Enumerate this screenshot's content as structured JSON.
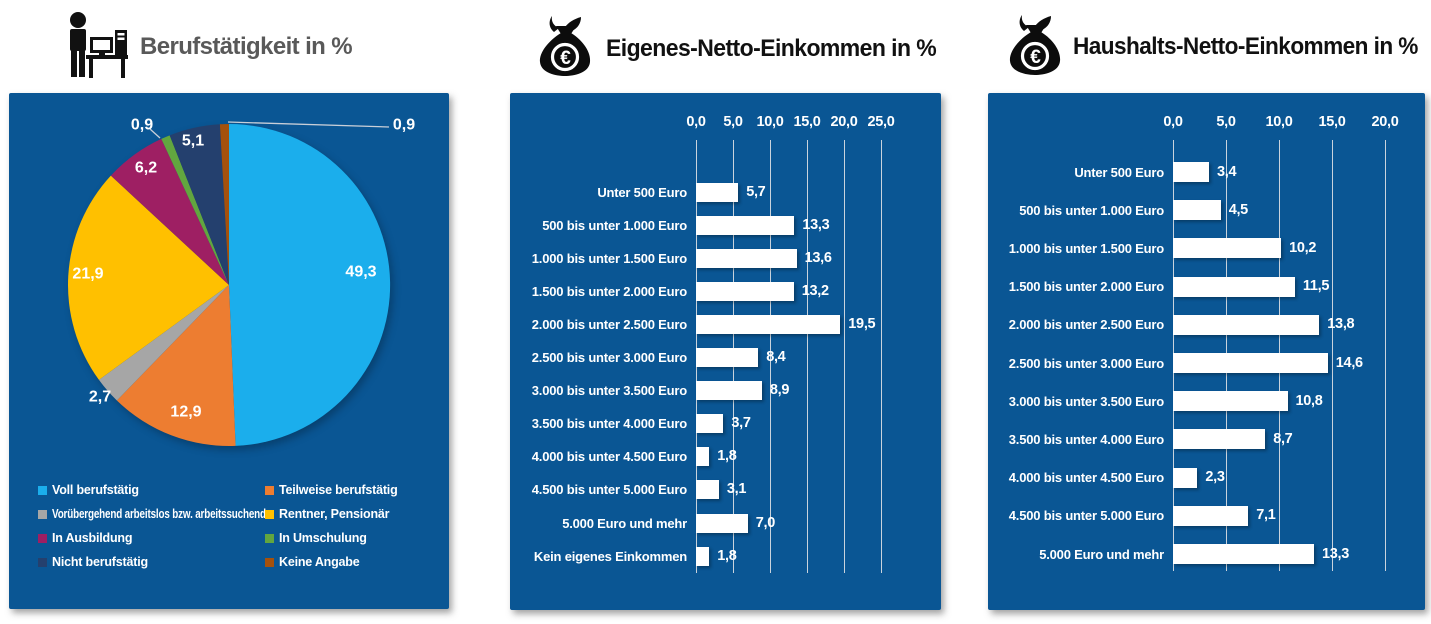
{
  "colors": {
    "panel_background": "#0A5694",
    "bar_fill": "#FFFFFF",
    "gridline": "#C9D3DD",
    "leader_line": "#C9CFD8",
    "title_employment": "#595959",
    "title_income": "#111111",
    "text_on_panel": "#FFFFFF"
  },
  "icons": {
    "employment": "person-at-desk-icon",
    "own_income": "money-bag-euro-icon",
    "household_income": "money-bag-euro-icon"
  },
  "chart_data": [
    {
      "type": "pie",
      "title": "Berufstätigkeit in %",
      "unit": "%",
      "start_angle_deg": 0,
      "direction": "clockwise",
      "labels": [
        "Voll berufstätig",
        "Teilweise berufstätig",
        "Vorübergehend arbeitslos bzw. arbeitssuchend",
        "Rentner, Pensionär",
        "In Ausbildung",
        "In Umschulung",
        "Nicht berufstätig",
        "Keine Angabe"
      ],
      "values": [
        49.3,
        12.9,
        2.7,
        21.9,
        6.2,
        0.9,
        5.1,
        0.9
      ],
      "value_labels": [
        "49,3",
        "12,9",
        "2,7",
        "21,9",
        "6,2",
        "0,9",
        "5,1",
        "0,9"
      ],
      "colors": [
        "#1BAEEC",
        "#ED7D31",
        "#A6A6A6",
        "#FFC000",
        "#9E1F63",
        "#62A63F",
        "#24406E",
        "#A5510C"
      ],
      "legend_position": "bottom",
      "legend_columns": [
        [
          0,
          2,
          4,
          6
        ],
        [
          1,
          3,
          5,
          7
        ]
      ]
    },
    {
      "type": "bar",
      "orientation": "horizontal",
      "title": "Eigenes-Netto-Einkommen in %",
      "unit": "%",
      "grid": true,
      "xlim": [
        0,
        25
      ],
      "x_ticks": {
        "labels": [
          "0,0",
          "5,0",
          "10,0",
          "15,0",
          "20,0",
          "25,0"
        ],
        "values": [
          0,
          5,
          10,
          15,
          20,
          25
        ]
      },
      "categories": [
        "Unter  500 Euro",
        "500 bis unter 1.000 Euro",
        "1.000 bis unter 1.500 Euro",
        "1.500 bis unter 2.000 Euro",
        "2.000 bis unter 2.500 Euro",
        "2.500 bis unter 3.000 Euro",
        "3.000 bis unter 3.500 Euro",
        "3.500 bis unter 4.000 Euro",
        "4.000 bis unter 4.500 Euro",
        "4.500 bis unter 5.000 Euro",
        "5.000 Euro und mehr",
        "Kein eigenes Einkommen"
      ],
      "values": [
        5.7,
        13.3,
        13.6,
        13.2,
        19.5,
        8.4,
        8.9,
        3.7,
        1.8,
        3.1,
        7.0,
        1.8
      ],
      "value_labels": [
        "5,7",
        "13,3",
        "13,6",
        "13,2",
        "19,5",
        "8,4",
        "8,9",
        "3,7",
        "1,8",
        "3,1",
        "7,0",
        "1,8"
      ],
      "bar_color": "#FFFFFF"
    },
    {
      "type": "bar",
      "orientation": "horizontal",
      "title": "Haushalts-Netto-Einkommen in %",
      "unit": "%",
      "grid": true,
      "xlim": [
        0,
        20
      ],
      "x_ticks": {
        "labels": [
          "0,0",
          "5,0",
          "10,0",
          "15,0",
          "20,0"
        ],
        "values": [
          0,
          5,
          10,
          15,
          20
        ]
      },
      "categories": [
        "Unter  500 Euro",
        "500 bis unter 1.000 Euro",
        "1.000 bis unter 1.500 Euro",
        "1.500 bis unter 2.000 Euro",
        "2.000 bis unter 2.500 Euro",
        "2.500 bis unter 3.000 Euro",
        "3.000 bis unter 3.500 Euro",
        "3.500 bis unter 4.000 Euro",
        "4.000 bis unter 4.500 Euro",
        "4.500 bis unter 5.000 Euro",
        "5.000 Euro und mehr"
      ],
      "values": [
        3.4,
        4.5,
        10.2,
        11.5,
        13.8,
        14.6,
        10.8,
        8.7,
        2.3,
        7.1,
        13.3
      ],
      "value_labels": [
        "3,4",
        "4,5",
        "10,2",
        "11,5",
        "13,8",
        "14,6",
        "10,8",
        "8,7",
        "2,3",
        "7,1",
        "13,3"
      ],
      "bar_color": "#FFFFFF"
    }
  ]
}
